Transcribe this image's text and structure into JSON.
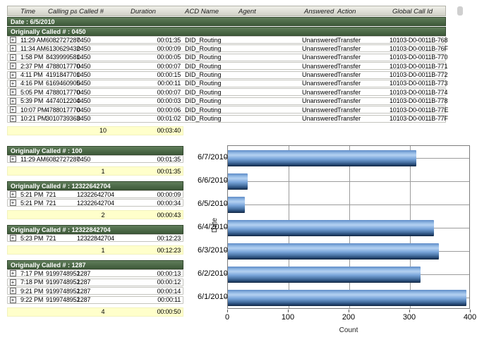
{
  "header": {
    "columns": [
      "Time",
      "Calling party #",
      "Called #",
      "Duration",
      "ACD Name",
      "Agent",
      "Answered",
      "Action",
      "Global Call Id"
    ]
  },
  "date_band": {
    "label": "Date : 6/5/2010"
  },
  "main_group": {
    "label": "Originally Called # : 0450",
    "rows": [
      {
        "time": "11:29 AM",
        "calling": "6082727287",
        "called": "0450",
        "duration": "00:01:35",
        "acd": "DID_Routing",
        "agent": "",
        "answered": "Unanswered",
        "action": "Transfer",
        "global_id": "10103-D0-0011B-768"
      },
      {
        "time": "11:34 AM",
        "calling": "6130629432",
        "called": "0450",
        "duration": "00:00:09",
        "acd": "DID_Routing",
        "agent": "",
        "answered": "Unanswered",
        "action": "Transfer",
        "global_id": "10103-D0-0011B-76F"
      },
      {
        "time": "1:58 PM",
        "calling": "8439999581",
        "called": "0450",
        "duration": "00:00:05",
        "acd": "DID_Routing",
        "agent": "",
        "answered": "Unanswered",
        "action": "Transfer",
        "global_id": "10103-D0-0011B-770"
      },
      {
        "time": "2:37 PM",
        "calling": "4788017770",
        "called": "0450",
        "duration": "00:00:07",
        "acd": "DID_Routing",
        "agent": "",
        "answered": "Unanswered",
        "action": "Transfer",
        "global_id": "10103-D0-0011B-771"
      },
      {
        "time": "4:11 PM",
        "calling": "4191847701",
        "called": "0450",
        "duration": "00:00:15",
        "acd": "DID_Routing",
        "agent": "",
        "answered": "Unanswered",
        "action": "Transfer",
        "global_id": "10103-D0-0011B-772"
      },
      {
        "time": "4:16 PM",
        "calling": "6169460905",
        "called": "0450",
        "duration": "00:00:11",
        "acd": "DID_Routing",
        "agent": "",
        "answered": "Unanswered",
        "action": "Transfer",
        "global_id": "10103-D0-0011B-773"
      },
      {
        "time": "5:05 PM",
        "calling": "4788017770",
        "called": "0450",
        "duration": "00:00:07",
        "acd": "DID_Routing",
        "agent": "",
        "answered": "Unanswered",
        "action": "Transfer",
        "global_id": "10103-D0-0011B-774"
      },
      {
        "time": "5:39 PM",
        "calling": "4474012204",
        "called": "0450",
        "duration": "00:00:03",
        "acd": "DID_Routing",
        "agent": "",
        "answered": "Unanswered",
        "action": "Transfer",
        "global_id": "10103-D0-0011B-778"
      },
      {
        "time": "10:07 PM",
        "calling": "4788017770",
        "called": "0450",
        "duration": "00:00:06",
        "acd": "DID_Routing",
        "agent": "",
        "answered": "Unanswered",
        "action": "Transfer",
        "global_id": "10103-D0-0011B-77E"
      },
      {
        "time": "10:21 PM",
        "calling": "3010739363",
        "called": "0450",
        "duration": "00:01:02",
        "acd": "DID_Routing",
        "agent": "",
        "answered": "Unanswered",
        "action": "Transfer",
        "global_id": "10103-D0-0011B-77F"
      }
    ],
    "summary": {
      "count": "10",
      "duration": "00:03:40"
    }
  },
  "groups": [
    {
      "label": "Originally Called # : 100",
      "rows": [
        {
          "time": "11:29 AM",
          "calling": "6082727287",
          "called": "0450",
          "duration": "00:01:35"
        }
      ],
      "summary": {
        "count": "1",
        "duration": "00:01:35"
      }
    },
    {
      "label": "Originally Called # : 12322642704",
      "rows": [
        {
          "time": "5:21 PM",
          "calling": "721",
          "called": "12322642704",
          "duration": "00:00:09"
        },
        {
          "time": "5:21 PM",
          "calling": "721",
          "called": "12322642704",
          "duration": "00:00:34"
        }
      ],
      "summary": {
        "count": "2",
        "duration": "00:00:43"
      }
    },
    {
      "label": "Originally Called # : 12322842704",
      "rows": [
        {
          "time": "5:23 PM",
          "calling": "721",
          "called": "12322842704",
          "duration": "00:12:23"
        }
      ],
      "summary": {
        "count": "1",
        "duration": "00:12:23"
      }
    },
    {
      "label": "Originally Called # : 1287",
      "rows": [
        {
          "time": "7:17 PM",
          "calling": "9199748952",
          "called": "1287",
          "duration": "00:00:13"
        },
        {
          "time": "7:18 PM",
          "calling": "9199748952",
          "called": "1287",
          "duration": "00:00:12"
        },
        {
          "time": "9:21 PM",
          "calling": "9199748952",
          "called": "1287",
          "duration": "00:00:14"
        },
        {
          "time": "9:22 PM",
          "calling": "9199748952",
          "called": "1287",
          "duration": "00:00:11"
        }
      ],
      "summary": {
        "count": "4",
        "duration": "00:00:50"
      }
    }
  ],
  "chart_data": {
    "type": "bar",
    "orientation": "horizontal",
    "title": "",
    "categories": [
      "6/7/2010",
      "6/6/2010",
      "6/5/2010",
      "6/4/2010",
      "6/3/2010",
      "6/2/2010",
      "6/1/2010"
    ],
    "values": [
      310,
      33,
      28,
      340,
      348,
      318,
      393
    ],
    "xlabel": "Count",
    "ylabel": "Date",
    "xlim": [
      0,
      400
    ],
    "xticks": [
      0,
      100,
      200,
      300,
      400
    ],
    "grid": true,
    "legend": false
  },
  "icons": {
    "expand": "+"
  },
  "colors": {
    "group_header_bg": "#4a6547",
    "summary_bg": "#ffffcc",
    "bar_blue": "#6f9cd3",
    "grid_gray": "#9c9c9c"
  }
}
